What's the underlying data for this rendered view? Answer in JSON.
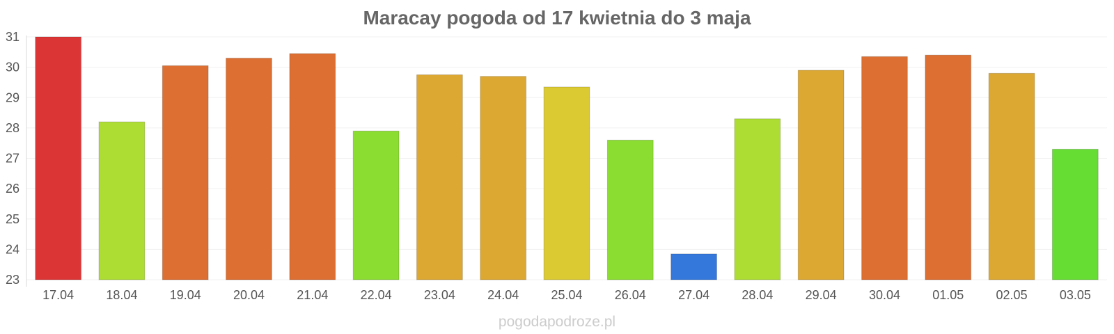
{
  "chart_data": {
    "type": "bar",
    "title": "Maracay pogoda od 17 kwietnia do 3 maja",
    "xlabel": "",
    "ylabel": "",
    "ylim": [
      23,
      31
    ],
    "yticks": [
      "23",
      "24",
      "25",
      "26",
      "27",
      "28",
      "29",
      "30",
      "31"
    ],
    "grid": true,
    "categories": [
      "17.04",
      "18.04",
      "19.04",
      "20.04",
      "21.04",
      "22.04",
      "23.04",
      "24.04",
      "25.04",
      "26.04",
      "27.04",
      "28.04",
      "29.04",
      "30.04",
      "01.05",
      "02.05",
      "03.05"
    ],
    "values": [
      31.0,
      28.2,
      30.05,
      30.3,
      30.45,
      27.9,
      29.75,
      29.7,
      29.35,
      27.6,
      23.85,
      28.3,
      29.9,
      30.35,
      30.4,
      29.8,
      27.3
    ],
    "colors": [
      "#dc3535",
      "#addd32",
      "#dd6f32",
      "#dd6f32",
      "#dd6f32",
      "#8bdd32",
      "#dda832",
      "#dda832",
      "#dcca32",
      "#8bdd32",
      "#3578dc",
      "#addd32",
      "#dda832",
      "#dd6f32",
      "#dd6f32",
      "#dda832",
      "#66dd32"
    ]
  },
  "watermark": "pogodapodroze.pl"
}
